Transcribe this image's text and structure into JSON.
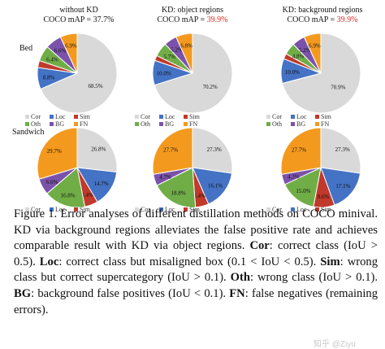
{
  "columns": [
    {
      "title": "without KD",
      "map_prefix": "COCO mAP = ",
      "map_value": "37.7%",
      "highlight": false
    },
    {
      "title": "KD: object regions",
      "map_prefix": "COCO mAP = ",
      "map_value": "39.9%",
      "highlight": true
    },
    {
      "title": "KD: background regions",
      "map_prefix": "COCO mAP = ",
      "map_value": "39.9%",
      "highlight": true
    }
  ],
  "rows": [
    "Bed",
    "Sandwich"
  ],
  "legend": [
    "Cor",
    "Loc",
    "Sim",
    "Oth",
    "BG",
    "FN"
  ],
  "colors": {
    "Cor": "#d9d9d9",
    "Loc": "#4472c4",
    "Sim": "#c0392b",
    "Oth": "#70ad47",
    "BG": "#7b52ab",
    "FN": "#f39a1e",
    "highlight": "#e0261c"
  },
  "chart_data": [
    {
      "type": "pie",
      "row": "Bed",
      "column": "without KD",
      "slices": [
        {
          "name": "Cor",
          "value": 68.5,
          "label": "68.5%"
        },
        {
          "name": "Loc",
          "value": 8.8,
          "label": "8.8%"
        },
        {
          "name": "Sim",
          "value": 2.8,
          "label": ""
        },
        {
          "name": "Oth",
          "value": 6.4,
          "label": "6.4%"
        },
        {
          "name": "BG",
          "value": 6.6,
          "label": "6.6%"
        },
        {
          "name": "FN",
          "value": 6.9,
          "label": "6.9%"
        }
      ]
    },
    {
      "type": "pie",
      "row": "Bed",
      "column": "KD: object regions",
      "slices": [
        {
          "name": "Cor",
          "value": 70.2,
          "label": "70.2%"
        },
        {
          "name": "Loc",
          "value": 10.0,
          "label": "10.0%"
        },
        {
          "name": "Sim",
          "value": 2.1,
          "label": ""
        },
        {
          "name": "Oth",
          "value": 5.7,
          "label": "5.7%"
        },
        {
          "name": "BG",
          "value": 5.2,
          "label": "5.2%"
        },
        {
          "name": "FN",
          "value": 6.8,
          "label": "6.8%"
        }
      ]
    },
    {
      "type": "pie",
      "row": "Bed",
      "column": "KD: background regions",
      "slices": [
        {
          "name": "Cor",
          "value": 70.9,
          "label": "70.9%"
        },
        {
          "name": "Loc",
          "value": 10.0,
          "label": "10.0%"
        },
        {
          "name": "Sim",
          "value": 2.2,
          "label": ""
        },
        {
          "name": "Oth",
          "value": 4.8,
          "label": "4.8%"
        },
        {
          "name": "BG",
          "value": 5.2,
          "label": "5.2%"
        },
        {
          "name": "FN",
          "value": 6.9,
          "label": "6.9%"
        }
      ]
    },
    {
      "type": "pie",
      "row": "Sandwich",
      "column": "without KD",
      "slices": [
        {
          "name": "Cor",
          "value": 26.8,
          "label": "26.8%"
        },
        {
          "name": "Loc",
          "value": 14.7,
          "label": "14.7%"
        },
        {
          "name": "Sim",
          "value": 5.4,
          "label": "5.4%"
        },
        {
          "name": "Oth",
          "value": 16.8,
          "label": "16.8%"
        },
        {
          "name": "BG",
          "value": 6.6,
          "label": "6.6%"
        },
        {
          "name": "FN",
          "value": 29.7,
          "label": "29.7%"
        }
      ]
    },
    {
      "type": "pie",
      "row": "Sandwich",
      "column": "KD: object regions",
      "slices": [
        {
          "name": "Cor",
          "value": 27.3,
          "label": "27.3%"
        },
        {
          "name": "Loc",
          "value": 16.1,
          "label": "16.1%"
        },
        {
          "name": "Sim",
          "value": 5.4,
          "label": "5.4%"
        },
        {
          "name": "Oth",
          "value": 18.8,
          "label": "18.8%"
        },
        {
          "name": "BG",
          "value": 4.7,
          "label": "4.7%"
        },
        {
          "name": "FN",
          "value": 27.7,
          "label": "27.7%"
        }
      ]
    },
    {
      "type": "pie",
      "row": "Sandwich",
      "column": "KD: background regions",
      "slices": [
        {
          "name": "Cor",
          "value": 27.3,
          "label": "27.3%"
        },
        {
          "name": "Loc",
          "value": 17.1,
          "label": "17.1%"
        },
        {
          "name": "Sim",
          "value": 8.6,
          "label": "8.6%"
        },
        {
          "name": "Oth",
          "value": 15.0,
          "label": "15.0%"
        },
        {
          "name": "BG",
          "value": 4.3,
          "label": "4.3%"
        },
        {
          "name": "FN",
          "value": 27.7,
          "label": "27.7%"
        }
      ]
    }
  ],
  "caption": {
    "figure_label": "Figure 1.",
    "sentence1": " Error analyses of different distillation methods on COCO minival. KD via background regions alleviates the false positive rate and achieves comparable result with KD via object regions. ",
    "items": [
      {
        "term": "Cor",
        "text": ": correct class (IoU > 0.5). "
      },
      {
        "term": "Loc",
        "text": ": correct class but misaligned box (0.1 < IoU < 0.5). "
      },
      {
        "term": "Sim",
        "text": ": wrong class but correct supercategory (IoU > 0.1). "
      },
      {
        "term": "Oth",
        "text": ": wrong class (IoU > 0.1). "
      },
      {
        "term": "BG",
        "text": ": background false positives (IoU < 0.1). "
      },
      {
        "term": "FN",
        "text": ": false negatives (remaining errors)."
      }
    ]
  },
  "watermark": "知乎 @Ziyu"
}
